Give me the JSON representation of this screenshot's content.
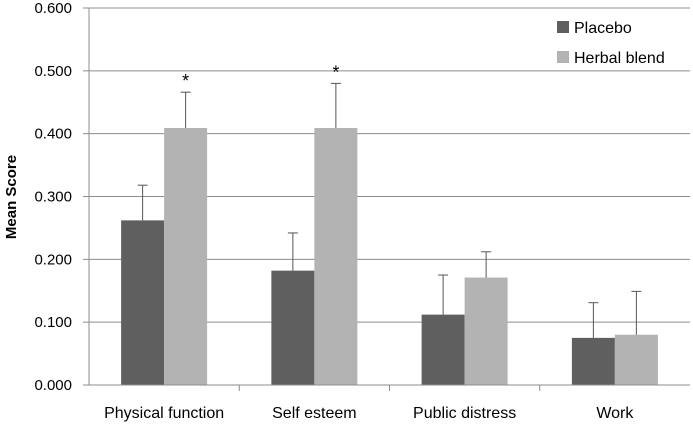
{
  "chart_data": {
    "type": "bar",
    "ylabel": "Mean Score",
    "ylim": [
      0,
      0.6
    ],
    "yticks": [
      "0.000",
      "0.100",
      "0.200",
      "0.300",
      "0.400",
      "0.500",
      "0.600"
    ],
    "categories": [
      "Physical function",
      "Self esteem",
      "Public distress",
      "Work"
    ],
    "grid": true,
    "legend_position": "top-right",
    "series": [
      {
        "name": "Placebo",
        "color": "#5f5f5f",
        "values": [
          0.262,
          0.182,
          0.112,
          0.075
        ],
        "errors": [
          0.056,
          0.06,
          0.063,
          0.056
        ]
      },
      {
        "name": "Herbal blend",
        "color": "#b3b3b3",
        "values": [
          0.409,
          0.409,
          0.171,
          0.08
        ],
        "errors": [
          0.057,
          0.071,
          0.041,
          0.069
        ]
      }
    ],
    "annotations": [
      {
        "text": "*",
        "category": 0,
        "series": 1
      },
      {
        "text": "*",
        "category": 1,
        "series": 1
      }
    ]
  }
}
